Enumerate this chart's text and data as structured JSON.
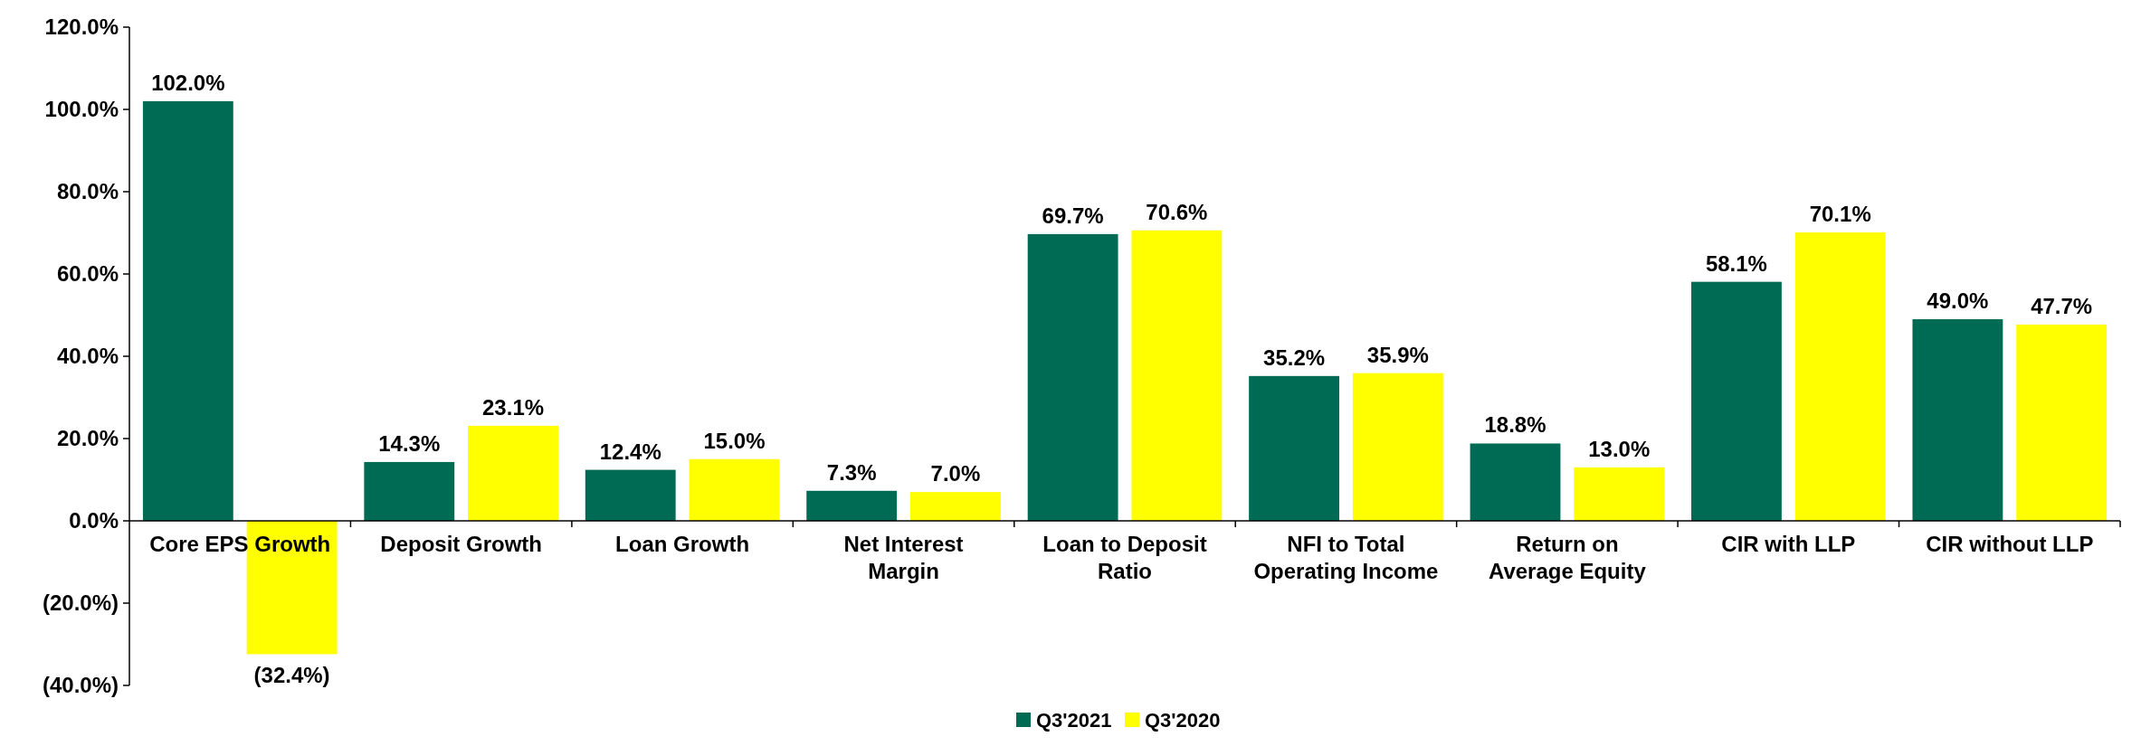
{
  "chart_data": {
    "type": "bar",
    "categories": [
      "Core EPS Growth",
      "Deposit Growth",
      "Loan Growth",
      "Net Interest Margin",
      "Loan to Deposit Ratio",
      "NFI to Total Operating Income",
      "Return on Average Equity",
      "CIR with LLP",
      "CIR without LLP"
    ],
    "series": [
      {
        "name": "Q3'2021",
        "color": "#006b54",
        "values": [
          102.0,
          14.3,
          12.4,
          7.3,
          69.7,
          35.2,
          18.8,
          58.1,
          49.0
        ],
        "value_labels": [
          "102.0%",
          "14.3%",
          "12.4%",
          "7.3%",
          "69.7%",
          "35.2%",
          "18.8%",
          "58.1%",
          "49.0%"
        ]
      },
      {
        "name": "Q3'2020",
        "color": "#ffff00",
        "values": [
          -32.4,
          23.1,
          15.0,
          7.0,
          70.6,
          35.9,
          13.0,
          70.1,
          47.7
        ],
        "value_labels": [
          "(32.4%)",
          "23.1%",
          "15.0%",
          "7.0%",
          "70.6%",
          "35.9%",
          "13.0%",
          "70.1%",
          "47.7%"
        ]
      }
    ],
    "ylim": [
      -40,
      120
    ],
    "yticks": [
      {
        "value": -40,
        "label": "(40.0%)"
      },
      {
        "value": -20,
        "label": "(20.0%)"
      },
      {
        "value": 0,
        "label": "0.0%"
      },
      {
        "value": 20,
        "label": "20.0%"
      },
      {
        "value": 40,
        "label": "40.0%"
      },
      {
        "value": 60,
        "label": "60.0%"
      },
      {
        "value": 80,
        "label": "80.0%"
      },
      {
        "value": 100,
        "label": "100.0%"
      },
      {
        "value": 120,
        "label": "120.0%"
      }
    ],
    "legend": "bottom"
  }
}
